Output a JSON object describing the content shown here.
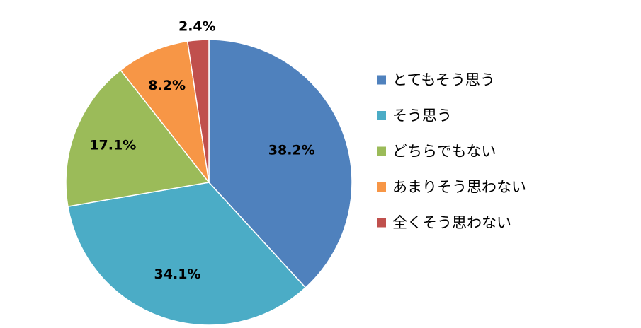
{
  "chart_data": {
    "type": "pie",
    "title": "",
    "start_angle_deg": 0,
    "direction": "clockwise",
    "legend_position": "right",
    "slices": [
      {
        "label": "とてもそう思う",
        "value": 38.2,
        "display": "38.2%",
        "color": "#4F81BD"
      },
      {
        "label": "そう思う",
        "value": 34.1,
        "display": "34.1%",
        "color": "#4BACC6"
      },
      {
        "label": "どちらでもない",
        "value": 17.1,
        "display": "17.1%",
        "color": "#9BBB59"
      },
      {
        "label": "あまりそう思わない",
        "value": 8.2,
        "display": "8.2%",
        "color": "#F79646"
      },
      {
        "label": "全くそう思わない",
        "value": 2.4,
        "display": "2.4%",
        "color": "#C0504D"
      }
    ]
  }
}
